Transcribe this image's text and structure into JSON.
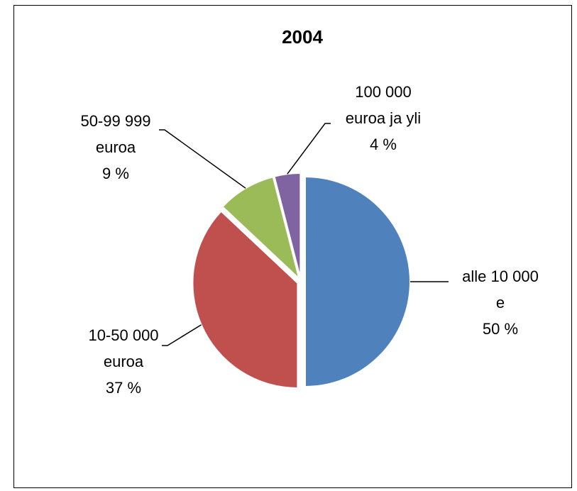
{
  "chart_data": {
    "type": "pie",
    "title": "2004",
    "slices": [
      {
        "label_lines": [
          "alle 10 000",
          "e",
          "50 %"
        ],
        "value": 50,
        "color": "#4F81BD"
      },
      {
        "label_lines": [
          "10-50 000",
          "euroa",
          "37 %"
        ],
        "value": 37,
        "color": "#C0504D"
      },
      {
        "label_lines": [
          "50-99 999",
          "euroa",
          "9 %"
        ],
        "value": 9,
        "color": "#9BBB59"
      },
      {
        "label_lines": [
          "100 000",
          "euroa ja yli",
          "4 %"
        ],
        "value": 4,
        "color": "#8064A2"
      }
    ],
    "legend": "none"
  }
}
